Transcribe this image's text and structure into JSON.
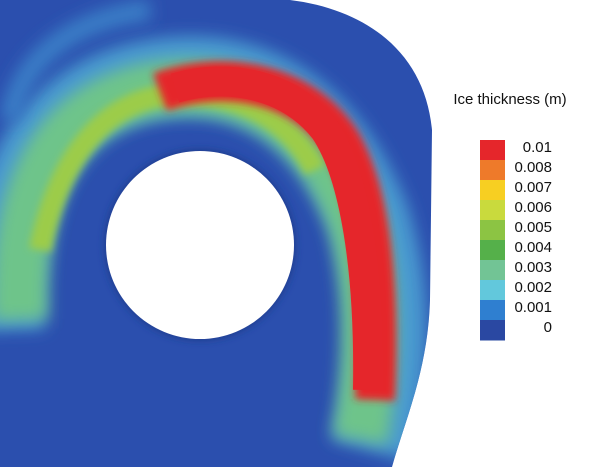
{
  "chart_data": {
    "type": "contour",
    "colorbar": {
      "title": "Ice thickness (m)",
      "ticks": [
        0.01,
        0.008,
        0.007,
        0.006,
        0.005,
        0.004,
        0.003,
        0.002,
        0.001,
        0
      ],
      "colors": [
        "#e5262b",
        "#ee7a2a",
        "#f7cf22",
        "#c9da3d",
        "#8cc443",
        "#55b04a",
        "#72c495",
        "#62c8dc",
        "#2f7fd0",
        "#2a48a2"
      ]
    }
  }
}
